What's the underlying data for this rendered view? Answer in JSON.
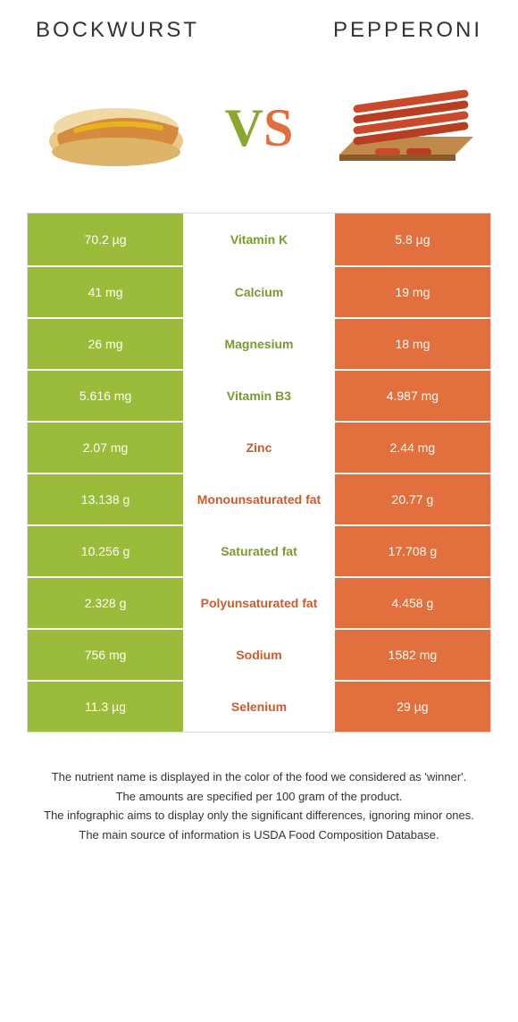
{
  "header": {
    "left_title": "BOCKWURST",
    "right_title": "PEPPERONI"
  },
  "vs": {
    "v": "V",
    "s": "S"
  },
  "colors": {
    "left_bg": "#9bbb3b",
    "right_bg": "#e2703e",
    "left_winner_text": "#7a9a2a",
    "right_winner_text": "#d05a2a",
    "footer_text": "#333333",
    "row_border": "#ffffff"
  },
  "rows": [
    {
      "left": "70.2 µg",
      "mid": "Vitamin K",
      "right": "5.8 µg",
      "winner": "left"
    },
    {
      "left": "41 mg",
      "mid": "Calcium",
      "right": "19 mg",
      "winner": "left"
    },
    {
      "left": "26 mg",
      "mid": "Magnesium",
      "right": "18 mg",
      "winner": "left"
    },
    {
      "left": "5.616 mg",
      "mid": "Vitamin B3",
      "right": "4.987 mg",
      "winner": "left"
    },
    {
      "left": "2.07 mg",
      "mid": "Zinc",
      "right": "2.44 mg",
      "winner": "right"
    },
    {
      "left": "13.138 g",
      "mid": "Monounsaturated fat",
      "right": "20.77 g",
      "winner": "right"
    },
    {
      "left": "10.256 g",
      "mid": "Saturated fat",
      "right": "17.708 g",
      "winner": "left"
    },
    {
      "left": "2.328 g",
      "mid": "Polyunsaturated fat",
      "right": "4.458 g",
      "winner": "right"
    },
    {
      "left": "756 mg",
      "mid": "Sodium",
      "right": "1582 mg",
      "winner": "right"
    },
    {
      "left": "11.3 µg",
      "mid": "Selenium",
      "right": "29 µg",
      "winner": "right"
    }
  ],
  "footer": {
    "line1": "The nutrient name is displayed in the color of the food we considered as 'winner'.",
    "line2": "The amounts are specified per 100 gram of the product.",
    "line3": "The infographic aims to display only the significant differences, ignoring minor ones.",
    "line4": "The main source of information is USDA Food Composition Database."
  }
}
